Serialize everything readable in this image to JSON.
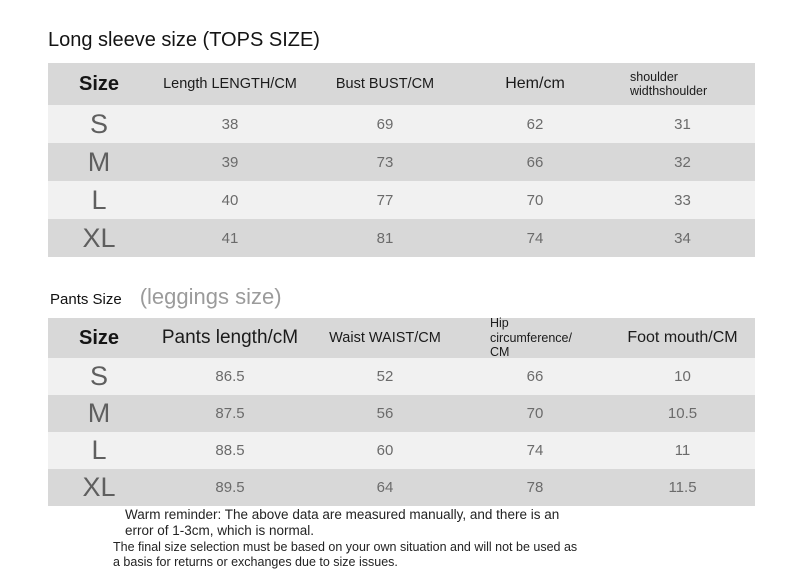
{
  "tops": {
    "title": "Long sleeve size (TOPS SIZE)",
    "columns": [
      "Size",
      "Length LENGTH/CM",
      "Bust BUST/CM",
      "Hem/cm",
      "shoulder widthshoulder"
    ],
    "rows": [
      {
        "size": "S",
        "values": [
          "38",
          "69",
          "62",
          "31"
        ]
      },
      {
        "size": "M",
        "values": [
          "39",
          "73",
          "66",
          "32"
        ]
      },
      {
        "size": "L",
        "values": [
          "40",
          "77",
          "70",
          "33"
        ]
      },
      {
        "size": "XL",
        "values": [
          "41",
          "81",
          "74",
          "34"
        ]
      }
    ]
  },
  "pants": {
    "title_primary": "Pants Size",
    "title_secondary": "(leggings size)",
    "columns": [
      "Size",
      "Pants length/cM",
      "Waist WAIST/CM",
      "Hip circumference/ CM",
      "Foot mouth/CM"
    ],
    "rows": [
      {
        "size": "S",
        "values": [
          "86.5",
          "52",
          "66",
          "10"
        ]
      },
      {
        "size": "M",
        "values": [
          "87.5",
          "56",
          "70",
          "10.5"
        ]
      },
      {
        "size": "L",
        "values": [
          "88.5",
          "60",
          "74",
          "11"
        ]
      },
      {
        "size": "XL",
        "values": [
          "89.5",
          "64",
          "78",
          "11.5"
        ]
      }
    ]
  },
  "footer": {
    "warm_reminder": "Warm reminder: The above data are measured manually, and there is an\nerror of 1-3cm, which is normal.",
    "final_note": "The final size selection must be based on your own situation and will not be used as\na basis for returns or exchanges due to size issues."
  },
  "colors": {
    "background": "#ffffff",
    "header_row_bg": "#d8d8d8",
    "row_dark_bg": "#d8d8d8",
    "row_light_bg": "#f1f1f1",
    "size_letter_color": "#5f5f5f",
    "value_color": "#6b6b6b",
    "header_text_color": "#1b1b1b",
    "secondary_title_color": "#9b9b9b"
  }
}
